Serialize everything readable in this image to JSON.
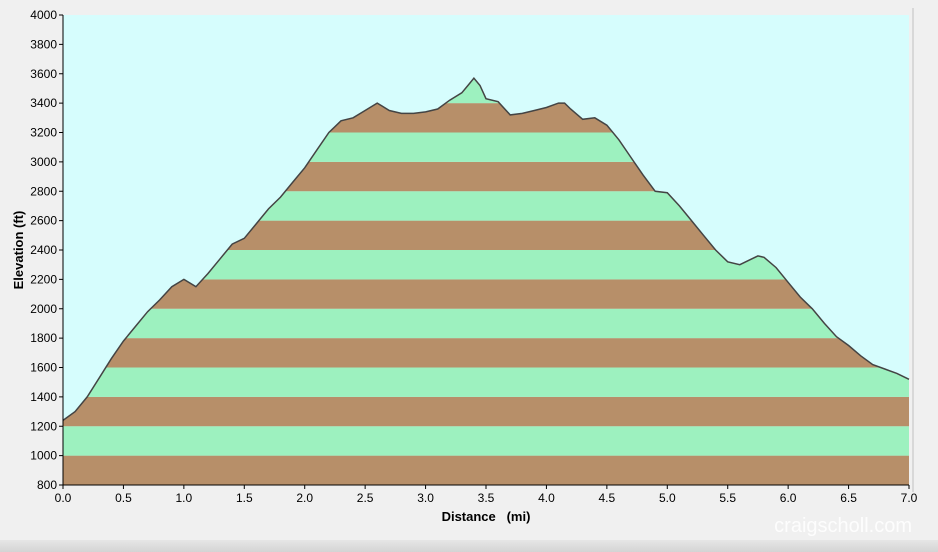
{
  "chart_data": {
    "type": "area",
    "title": "",
    "xlabel": "Distance   (mi)",
    "ylabel": "Elevation (ft)",
    "xlim": [
      0,
      7
    ],
    "ylim": [
      800,
      4000
    ],
    "x_ticks": [
      "0.0",
      "0.5",
      "1.0",
      "1.5",
      "2.0",
      "2.5",
      "3.0",
      "3.5",
      "4.0",
      "4.5",
      "5.0",
      "5.5",
      "6.0",
      "6.5",
      "7.0"
    ],
    "y_ticks": [
      "800",
      "1000",
      "1200",
      "1400",
      "1600",
      "1800",
      "2000",
      "2200",
      "2400",
      "2600",
      "2800",
      "3000",
      "3200",
      "3400",
      "3600",
      "3800",
      "4000"
    ],
    "grid": false,
    "series": [
      {
        "x": [
          0.0,
          0.1,
          0.2,
          0.3,
          0.4,
          0.5,
          0.6,
          0.7,
          0.8,
          0.9,
          1.0,
          1.1,
          1.2,
          1.3,
          1.4,
          1.5,
          1.6,
          1.7,
          1.8,
          1.9,
          2.0,
          2.1,
          2.2,
          2.3,
          2.4,
          2.5,
          2.6,
          2.7,
          2.8,
          2.9,
          3.0,
          3.1,
          3.2,
          3.3,
          3.35,
          3.4,
          3.45,
          3.5,
          3.6,
          3.7,
          3.8,
          3.9,
          4.0,
          4.1,
          4.15,
          4.2,
          4.3,
          4.4,
          4.5,
          4.6,
          4.7,
          4.8,
          4.9,
          5.0,
          5.1,
          5.2,
          5.3,
          5.4,
          5.5,
          5.6,
          5.7,
          5.75,
          5.8,
          5.9,
          6.0,
          6.1,
          6.2,
          6.3,
          6.4,
          6.5,
          6.6,
          6.7,
          6.8,
          6.9,
          7.0
        ],
        "y": [
          1240,
          1300,
          1400,
          1530,
          1660,
          1780,
          1880,
          1980,
          2060,
          2150,
          2200,
          2150,
          2240,
          2340,
          2440,
          2480,
          2580,
          2680,
          2760,
          2860,
          2960,
          3080,
          3200,
          3280,
          3300,
          3350,
          3400,
          3350,
          3330,
          3330,
          3340,
          3360,
          3420,
          3470,
          3520,
          3570,
          3520,
          3430,
          3410,
          3320,
          3330,
          3350,
          3370,
          3400,
          3400,
          3360,
          3290,
          3300,
          3250,
          3150,
          3030,
          2910,
          2800,
          2790,
          2700,
          2600,
          2500,
          2400,
          2320,
          2300,
          2340,
          2360,
          2350,
          2280,
          2180,
          2080,
          2000,
          1900,
          1810,
          1750,
          1680,
          1620,
          1590,
          1560,
          1520
        ]
      }
    ],
    "colors": {
      "plot_background": "#d6fdfd",
      "band_light": "#9df1bf",
      "band_dark": "#b78f69",
      "outline": "#444444"
    }
  },
  "watermark": "craigscholl.com"
}
